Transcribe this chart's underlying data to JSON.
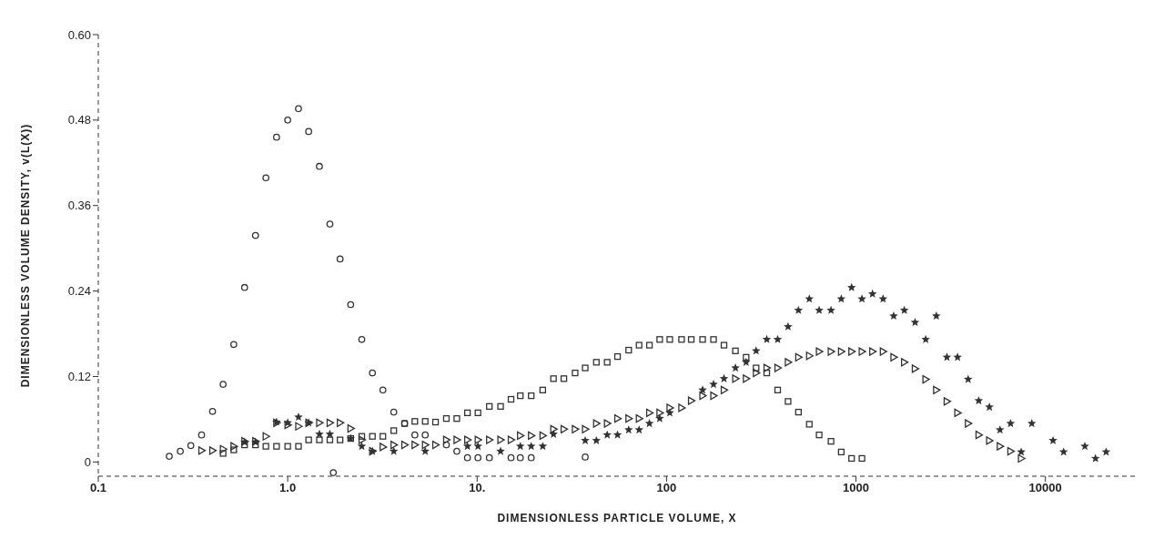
{
  "chart_data": {
    "type": "scatter",
    "xlabel": "DIMENSIONLESS PARTICLE VOLUME,  X",
    "ylabel": "DIMENSIONLESS VOLUME DENSITY,  v(L(X))",
    "log": "x",
    "grid": false,
    "legend": false,
    "xlim": [
      0.1,
      30000
    ],
    "xticks": [
      {
        "value": 0.1,
        "label": "0.1"
      },
      {
        "value": 1,
        "label": "1.0"
      },
      {
        "value": 10,
        "label": "10."
      },
      100,
      1000,
      10000
    ],
    "ylim": [
      -0.02,
      0.6
    ],
    "yticks": [
      0,
      0.12,
      0.24,
      0.36,
      0.48,
      {
        "value": 0.6,
        "label": "0.60"
      }
    ],
    "series": [
      {
        "color": "#333333",
        "marker": "circle",
        "x": [
          0.237,
          0.271,
          0.308,
          0.351,
          0.401,
          0.456,
          0.519,
          0.592,
          0.676,
          0.767,
          0.873,
          1.0,
          1.14,
          1.29,
          1.47,
          1.67,
          1.74,
          1.89,
          2.15,
          2.46,
          2.8,
          3.18,
          3.63,
          4.14,
          4.69,
          5.32,
          6.88,
          7.81,
          8.89,
          10.1,
          11.6,
          15.1,
          16.9,
          19.3,
          37.2
        ],
        "values": [
          0.008,
          0.015,
          0.023,
          0.038,
          0.071,
          0.109,
          0.165,
          0.245,
          0.318,
          0.399,
          0.456,
          0.48,
          0.496,
          0.464,
          0.415,
          0.334,
          -0.015,
          0.285,
          0.221,
          0.172,
          0.125,
          0.101,
          0.07,
          0.054,
          0.038,
          0.038,
          0.024,
          0.015,
          0.006,
          0.006,
          0.006,
          0.006,
          0.006,
          0.006,
          0.007
        ]
      },
      {
        "color": "#333333",
        "marker": "square",
        "x": [
          0.456,
          0.519,
          0.592,
          0.676,
          0.767,
          0.873,
          1.0,
          1.14,
          1.29,
          1.47,
          1.67,
          1.89,
          2.15,
          2.46,
          2.8,
          3.18,
          3.63,
          4.14,
          4.69,
          5.32,
          6.03,
          6.88,
          7.81,
          8.89,
          10.1,
          11.6,
          13.3,
          15.1,
          16.9,
          19.3,
          22.2,
          25.3,
          28.7,
          32.9,
          37.2,
          42.6,
          48.6,
          55.1,
          63.1,
          71.6,
          81.2,
          92,
          104,
          120,
          135,
          155,
          177,
          201,
          231,
          263,
          297,
          338,
          386,
          438,
          497,
          567,
          639,
          738,
          836,
          948,
          1075
        ],
        "values": [
          0.012,
          0.017,
          0.024,
          0.024,
          0.022,
          0.022,
          0.022,
          0.022,
          0.031,
          0.031,
          0.031,
          0.031,
          0.033,
          0.036,
          0.036,
          0.036,
          0.044,
          0.054,
          0.057,
          0.057,
          0.056,
          0.061,
          0.061,
          0.069,
          0.069,
          0.078,
          0.078,
          0.088,
          0.093,
          0.093,
          0.101,
          0.117,
          0.117,
          0.125,
          0.132,
          0.14,
          0.14,
          0.148,
          0.157,
          0.164,
          0.164,
          0.172,
          0.172,
          0.172,
          0.172,
          0.172,
          0.172,
          0.164,
          0.156,
          0.147,
          0.132,
          0.125,
          0.101,
          0.085,
          0.07,
          0.053,
          0.038,
          0.029,
          0.014,
          0.005,
          0.005
        ]
      },
      {
        "color": "#333333",
        "marker": "triangle",
        "x": [
          0.351,
          0.401,
          0.456,
          0.519,
          0.592,
          0.676,
          0.767,
          0.873,
          1.0,
          1.14,
          1.29,
          1.47,
          1.67,
          1.89,
          2.15,
          2.46,
          2.8,
          3.18,
          3.63,
          4.14,
          4.69,
          5.32,
          6.03,
          6.88,
          7.81,
          8.89,
          10.1,
          11.6,
          13.3,
          15.1,
          16.9,
          19.3,
          22.2,
          25.3,
          28.7,
          32.9,
          37.2,
          42.6,
          48.6,
          55.1,
          63.1,
          71.6,
          81.2,
          92,
          104,
          120,
          135,
          155,
          177,
          201,
          231,
          263,
          297,
          338,
          386,
          438,
          497,
          567,
          639,
          738,
          836,
          948,
          1075,
          1222,
          1390,
          1581,
          1799,
          2050,
          2333,
          2655,
          3020,
          3436,
          3909,
          4448,
          5060,
          5757,
          6549,
          7451
        ],
        "values": [
          0.016,
          0.016,
          0.018,
          0.022,
          0.029,
          0.029,
          0.036,
          0.055,
          0.052,
          0.05,
          0.055,
          0.055,
          0.055,
          0.055,
          0.047,
          0.031,
          0.015,
          0.021,
          0.024,
          0.024,
          0.024,
          0.024,
          0.024,
          0.031,
          0.031,
          0.031,
          0.031,
          0.031,
          0.031,
          0.031,
          0.037,
          0.037,
          0.037,
          0.046,
          0.046,
          0.046,
          0.046,
          0.054,
          0.054,
          0.061,
          0.061,
          0.061,
          0.069,
          0.069,
          0.076,
          0.076,
          0.086,
          0.093,
          0.093,
          0.101,
          0.117,
          0.117,
          0.125,
          0.132,
          0.132,
          0.14,
          0.147,
          0.149,
          0.155,
          0.155,
          0.155,
          0.155,
          0.155,
          0.155,
          0.155,
          0.147,
          0.14,
          0.131,
          0.116,
          0.101,
          0.085,
          0.069,
          0.054,
          0.038,
          0.03,
          0.022,
          0.015,
          0.005
        ]
      },
      {
        "color": "#333333",
        "marker": "star",
        "x": [
          0.592,
          0.676,
          0.873,
          1.0,
          1.14,
          1.29,
          1.47,
          1.67,
          2.15,
          2.46,
          2.8,
          3.63,
          5.32,
          8.89,
          10.1,
          13.3,
          16.9,
          19.3,
          22.2,
          25.3,
          37.2,
          42.6,
          48.6,
          55.1,
          63.1,
          71.6,
          81.2,
          92,
          104,
          155,
          177,
          201,
          231,
          263,
          297,
          338,
          386,
          438,
          497,
          567,
          639,
          738,
          836,
          948,
          1075,
          1222,
          1390,
          1581,
          1799,
          2050,
          2333,
          2655,
          3020,
          3436,
          3909,
          4448,
          5060,
          5757,
          6549,
          7451,
          8477,
          10970,
          12480,
          16150,
          18380,
          20910
        ],
        "values": [
          0.028,
          0.028,
          0.056,
          0.055,
          0.063,
          0.055,
          0.039,
          0.039,
          0.033,
          0.022,
          0.015,
          0.015,
          0.015,
          0.022,
          0.022,
          0.015,
          0.022,
          0.022,
          0.022,
          0.039,
          0.03,
          0.03,
          0.038,
          0.038,
          0.045,
          0.045,
          0.054,
          0.061,
          0.069,
          0.101,
          0.109,
          0.117,
          0.132,
          0.14,
          0.156,
          0.172,
          0.172,
          0.19,
          0.213,
          0.229,
          0.213,
          0.213,
          0.229,
          0.245,
          0.229,
          0.236,
          0.229,
          0.205,
          0.213,
          0.196,
          0.172,
          0.205,
          0.147,
          0.147,
          0.116,
          0.086,
          0.077,
          0.045,
          0.054,
          0.014,
          0.054,
          0.03,
          0.014,
          0.022,
          0.005,
          0.014
        ]
      }
    ]
  }
}
